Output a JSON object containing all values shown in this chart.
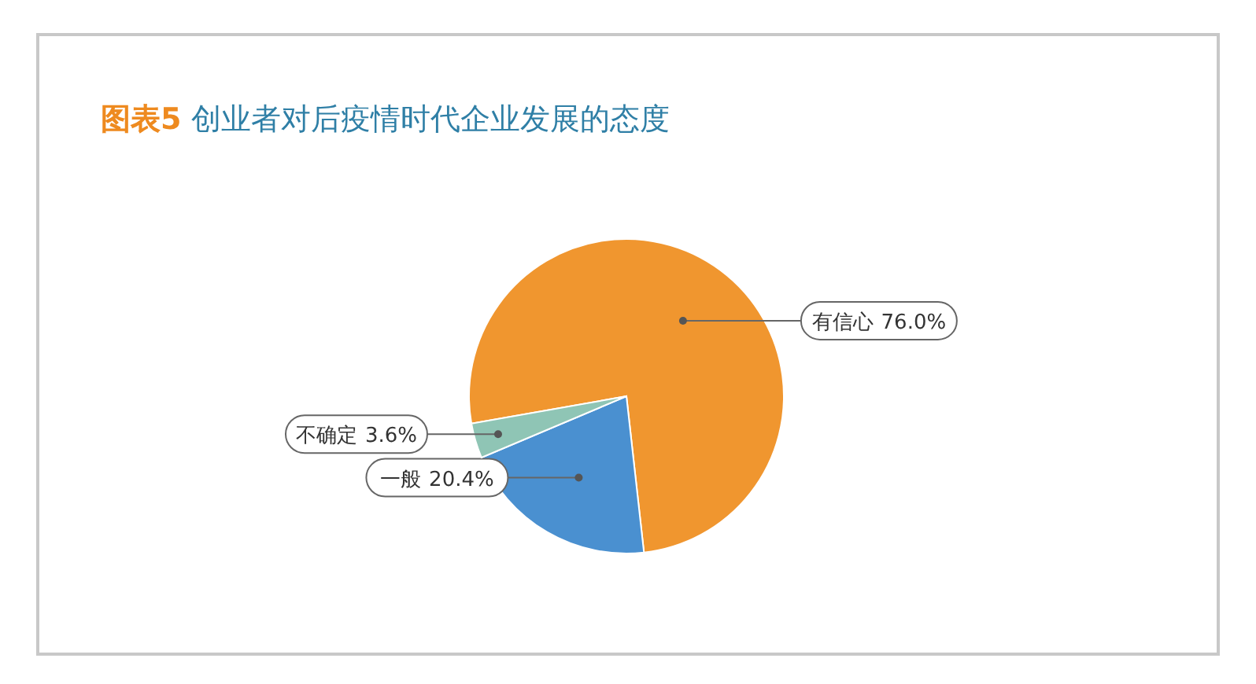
{
  "chart_data": {
    "type": "pie",
    "title": "图表5 创业者对后疫情时代企业发展的态度",
    "categories": [
      "有信心",
      "一般",
      "不确定"
    ],
    "values": [
      76.0,
      20.4,
      3.6
    ],
    "colors": [
      "#f0962f",
      "#4a90d0",
      "#8fc5b5"
    ],
    "value_labels": [
      "76.0%",
      "20.4%",
      "3.6%"
    ]
  }
}
